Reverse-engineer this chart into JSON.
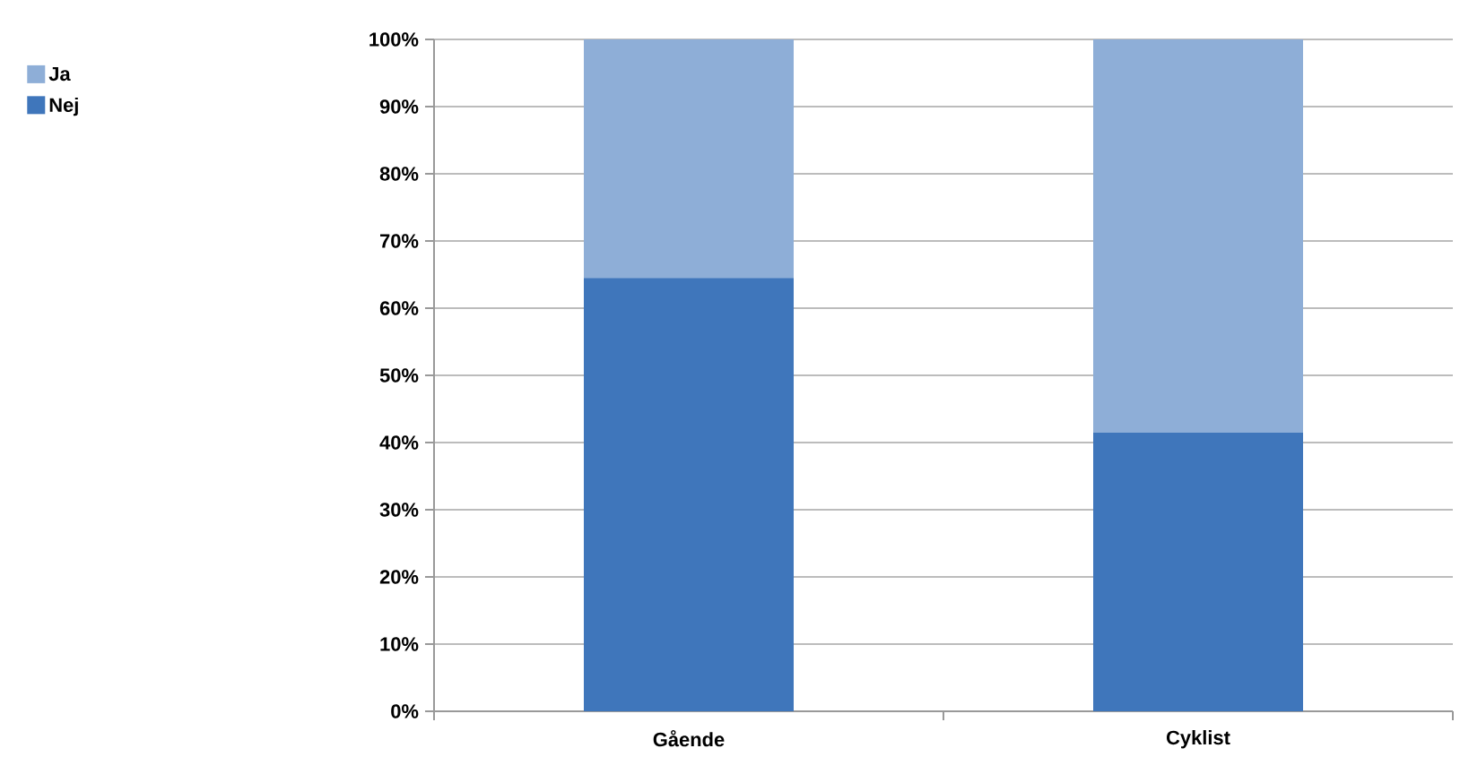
{
  "chart_data": {
    "type": "bar",
    "stacked": true,
    "categories": [
      "Gående",
      "Cyklist"
    ],
    "series": [
      {
        "name": "Nej",
        "color": "#3f76bb",
        "values": [
          64.5,
          41.5
        ]
      },
      {
        "name": "Ja",
        "color": "#8eaed7",
        "values": [
          35.5,
          58.5
        ]
      }
    ],
    "ylim": [
      0,
      100
    ],
    "yticks": [
      {
        "value": 0,
        "label": "0%"
      },
      {
        "value": 10,
        "label": "10%"
      },
      {
        "value": 20,
        "label": "20%"
      },
      {
        "value": 30,
        "label": "30%"
      },
      {
        "value": 40,
        "label": "40%"
      },
      {
        "value": 50,
        "label": "50%"
      },
      {
        "value": 60,
        "label": "60%"
      },
      {
        "value": 70,
        "label": "70%"
      },
      {
        "value": 80,
        "label": "80%"
      },
      {
        "value": 90,
        "label": "90%"
      },
      {
        "value": 100,
        "label": "100%"
      }
    ],
    "grid": "y",
    "legend": "top left"
  }
}
